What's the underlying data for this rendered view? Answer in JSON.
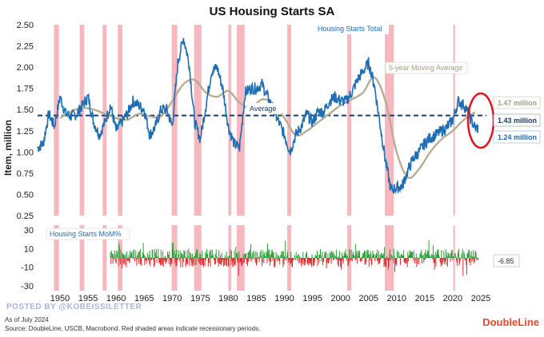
{
  "chart_data": {
    "type": "line",
    "title": "US Housing Starts SA",
    "ylabel": "Item, million",
    "ylim": [
      0.25,
      2.5
    ],
    "yticks": [
      "2.50",
      "2.25",
      "2.00",
      "1.75",
      "1.50",
      "1.25",
      "1.00",
      "0.75",
      "0.50",
      "0.25"
    ],
    "xticks": [
      "1950",
      "1955",
      "1960",
      "1965",
      "1970",
      "1975",
      "1980",
      "1985",
      "1990",
      "1995",
      "2000",
      "2005",
      "2010",
      "2015",
      "2020",
      "2025"
    ],
    "xlim": [
      1946,
      2026
    ],
    "recessions": [
      [
        1948.9,
        1949.8
      ],
      [
        1953.5,
        1954.3
      ],
      [
        1957.6,
        1958.3
      ],
      [
        1960.3,
        1961.1
      ],
      [
        1969.9,
        1970.9
      ],
      [
        1973.9,
        1975.2
      ],
      [
        1980.0,
        1980.5
      ],
      [
        1981.5,
        1982.9
      ],
      [
        1990.5,
        1991.2
      ],
      [
        2001.2,
        2001.9
      ],
      [
        2007.9,
        2009.5
      ],
      [
        2020.1,
        2020.4
      ]
    ],
    "series": [
      {
        "name": "Housing Starts Total",
        "color": "#1f6db3",
        "x": [
          1946,
          1947,
          1948,
          1949,
          1950,
          1951,
          1952,
          1953,
          1954,
          1955,
          1956,
          1957,
          1958,
          1959,
          1960,
          1961,
          1962,
          1963,
          1964,
          1965,
          1966,
          1967,
          1968,
          1969,
          1970,
          1971,
          1972,
          1973,
          1974,
          1975,
          1976,
          1977,
          1978,
          1979,
          1980,
          1981,
          1982,
          1983,
          1984,
          1985,
          1986,
          1987,
          1988,
          1989,
          1990,
          1991,
          1992,
          1993,
          1994,
          1995,
          1996,
          1997,
          1998,
          1999,
          2000,
          2001,
          2002,
          2003,
          2004,
          2005,
          2006,
          2007,
          2008,
          2009,
          2010,
          2011,
          2012,
          2013,
          2014,
          2015,
          2016,
          2017,
          2018,
          2019,
          2020,
          2021,
          2022,
          2023,
          2024
        ],
        "values": [
          1.05,
          1.1,
          1.45,
          1.3,
          1.65,
          1.45,
          1.42,
          1.45,
          1.55,
          1.65,
          1.35,
          1.2,
          1.35,
          1.55,
          1.25,
          1.35,
          1.45,
          1.6,
          1.55,
          1.5,
          1.2,
          1.3,
          1.5,
          1.5,
          1.3,
          2.05,
          2.35,
          2.05,
          1.35,
          1.15,
          1.55,
          1.95,
          2.0,
          1.75,
          1.3,
          1.1,
          1.05,
          1.7,
          1.75,
          1.75,
          1.8,
          1.65,
          1.5,
          1.35,
          1.2,
          1.0,
          1.2,
          1.3,
          1.45,
          1.35,
          1.48,
          1.47,
          1.6,
          1.65,
          1.6,
          1.6,
          1.7,
          1.85,
          1.95,
          2.05,
          1.8,
          1.35,
          0.9,
          0.55,
          0.58,
          0.6,
          0.78,
          0.93,
          1.0,
          1.1,
          1.17,
          1.2,
          1.25,
          1.29,
          1.38,
          1.6,
          1.55,
          1.42,
          1.28
        ]
      },
      {
        "name": "5-year Moving Average",
        "color": "#b7ad94",
        "x": [
          1950,
          1952,
          1954,
          1956,
          1958,
          1960,
          1962,
          1964,
          1966,
          1968,
          1970,
          1972,
          1974,
          1976,
          1978,
          1980,
          1982,
          1984,
          1986,
          1988,
          1990,
          1992,
          1994,
          1996,
          1998,
          2000,
          2002,
          2004,
          2006,
          2008,
          2010,
          2012,
          2014,
          2016,
          2018,
          2020,
          2022,
          2024
        ],
        "values": [
          1.4,
          1.48,
          1.52,
          1.5,
          1.45,
          1.4,
          1.38,
          1.45,
          1.42,
          1.42,
          1.6,
          1.8,
          1.85,
          1.7,
          1.65,
          1.72,
          1.58,
          1.52,
          1.62,
          1.57,
          1.4,
          1.2,
          1.25,
          1.35,
          1.45,
          1.55,
          1.62,
          1.7,
          1.88,
          1.6,
          1.0,
          0.7,
          0.8,
          1.0,
          1.15,
          1.25,
          1.38,
          1.47
        ]
      },
      {
        "name": "Average",
        "color": "#1d3a63",
        "value": 1.43
      }
    ],
    "callouts": [
      {
        "label": "1.47 million",
        "color": "#b7ad94",
        "value": 1.47
      },
      {
        "label": "1.43 million",
        "color": "#1d3a63",
        "value": 1.43
      },
      {
        "label": "1.24 million",
        "color": "#1f6db3",
        "value": 1.24
      }
    ],
    "mom": {
      "name": "Housing Starts MoM%",
      "yticks": [
        "30",
        "10",
        "-10",
        "-30"
      ],
      "ylim": [
        -35,
        35
      ],
      "latest_label": "-6.85",
      "latest_value": -6.85,
      "pos_color": "#2e9e3a",
      "neg_color": "#d62f2f"
    }
  },
  "footer": {
    "posted_by": "POSTED BY @KOBEISSILETTER",
    "as_of": "As of July 2024",
    "source": "Source: DoubleLine, USCB, Macrobond. Red shaded areas indicate recessionary periods.",
    "brand": "DoubleLine"
  },
  "colors": {
    "recession": "#f6b8be",
    "ring": "#e0141e"
  }
}
